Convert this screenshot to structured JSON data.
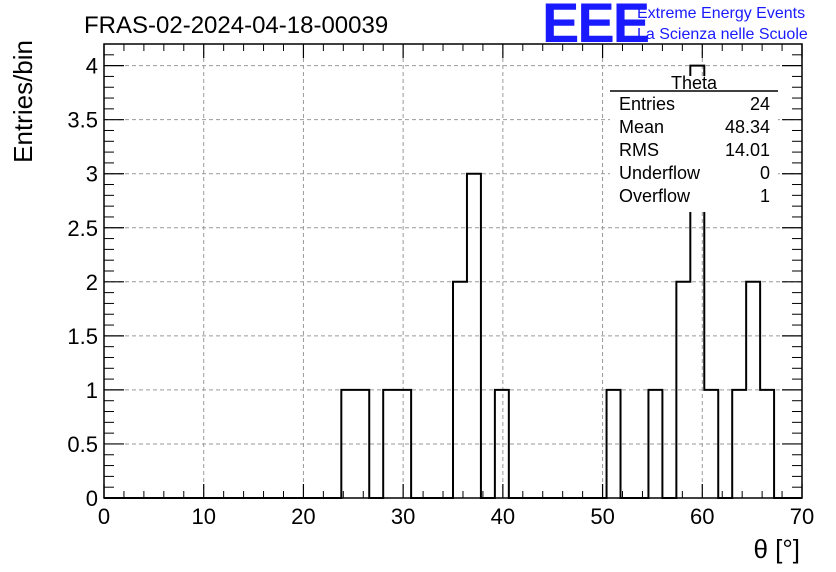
{
  "chart_data": {
    "type": "bar",
    "histogram": true,
    "title": "FRAS-02-2024-04-18-00039",
    "xlabel": "θ [°]",
    "ylabel": "Entries/bin",
    "xlim": [
      0,
      70
    ],
    "ylim": [
      0,
      4.2
    ],
    "grid": true,
    "x_ticks": [
      "0",
      "10",
      "20",
      "30",
      "40",
      "50",
      "60",
      "70"
    ],
    "y_ticks": [
      "0",
      "0.5",
      "1",
      "1.5",
      "2",
      "2.5",
      "3",
      "3.5",
      "4"
    ],
    "bin_width": 1.4,
    "bin_start": 0,
    "values": [
      0,
      0,
      0,
      0,
      0,
      0,
      0,
      0,
      0,
      0,
      0,
      0,
      0,
      0,
      0,
      0,
      0,
      1,
      1,
      0,
      1,
      1,
      0,
      0,
      0,
      2,
      3,
      0,
      1,
      0,
      0,
      0,
      0,
      0,
      0,
      0,
      1,
      0,
      0,
      1,
      0,
      2,
      4,
      1,
      0,
      1,
      2,
      1,
      0,
      0
    ],
    "line_color": "#000000"
  },
  "stats_box": {
    "title": "Theta",
    "rows": [
      {
        "label": "Entries",
        "value": "24"
      },
      {
        "label": "Mean",
        "value": "48.34"
      },
      {
        "label": "RMS",
        "value": "14.01"
      },
      {
        "label": "Underflow",
        "value": "0"
      },
      {
        "label": "Overflow",
        "value": "1"
      }
    ]
  },
  "logo": {
    "mark": "EEE",
    "line1": "Extreme Energy Events",
    "line2": "La Scienza nelle Scuole",
    "color": "#1a1aff"
  }
}
